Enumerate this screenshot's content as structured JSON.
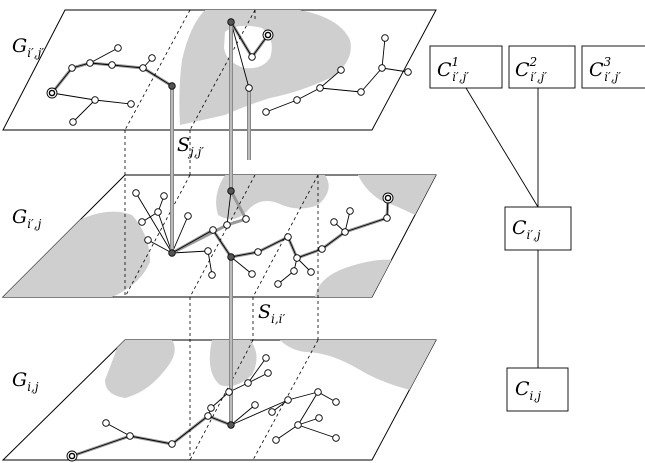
{
  "planes": {
    "top": {
      "symbol": "G",
      "subscript": "i′,j′"
    },
    "middle": {
      "symbol": "G",
      "subscript": "i′,j"
    },
    "bottom": {
      "symbol": "G",
      "subscript": "i,j"
    }
  },
  "separators": {
    "upper": {
      "symbol": "S",
      "subscript": "j,j′"
    },
    "lower": {
      "symbol": "S",
      "subscript": "i,i′"
    }
  },
  "tree": {
    "c1": {
      "symbol": "C",
      "superscript": "1",
      "subscript": "i′,j′"
    },
    "c2": {
      "symbol": "C",
      "superscript": "2",
      "subscript": "i′,j′"
    },
    "c3": {
      "symbol": "C",
      "superscript": "3",
      "subscript": "i′,j′"
    },
    "mid": {
      "symbol": "C",
      "subscript": "i′,j"
    },
    "leaf": {
      "symbol": "C",
      "subscript": "i,j"
    }
  },
  "colors": {
    "region": "#cfcfcf",
    "path": "#9a9a9a",
    "node_dark": "#555555"
  }
}
